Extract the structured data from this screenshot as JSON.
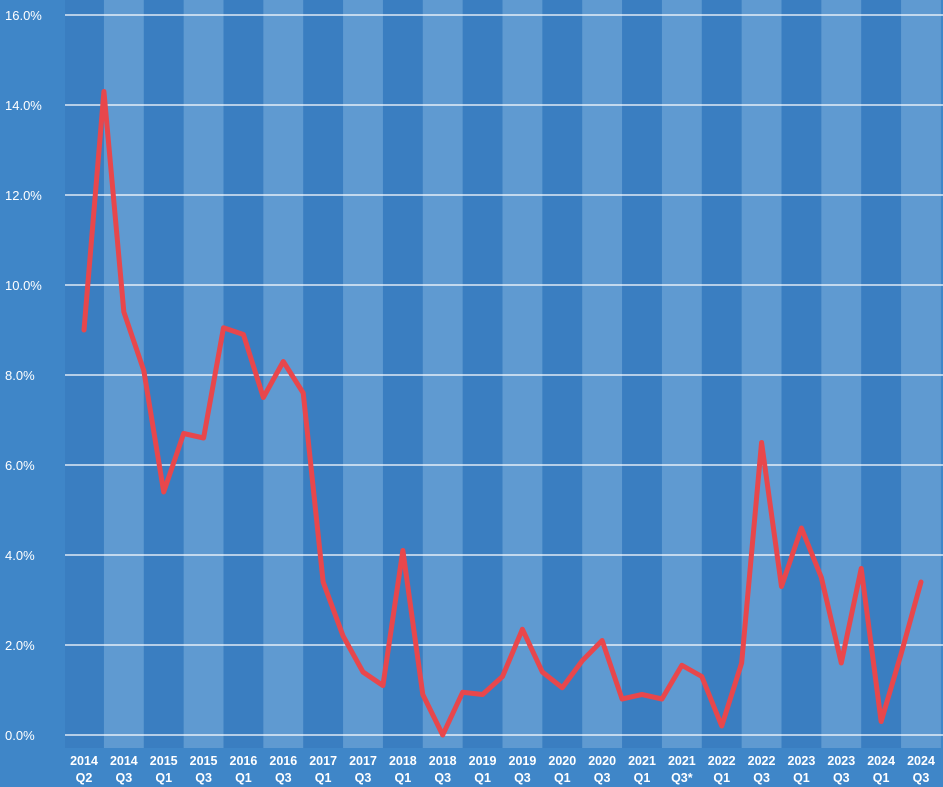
{
  "chart_data": {
    "type": "line",
    "categories": [
      "2014 Q2",
      null,
      "2014 Q3",
      null,
      "2015 Q1",
      null,
      "2015 Q3",
      null,
      "2016 Q1",
      null,
      "2016 Q3",
      null,
      "2017 Q1",
      null,
      "2017 Q3",
      null,
      "2018 Q1",
      null,
      "2018 Q3",
      null,
      "2019 Q1",
      null,
      "2019 Q3",
      null,
      "2020 Q1",
      null,
      "2020 Q3",
      null,
      "2021 Q1",
      null,
      "2021 Q3*",
      null,
      "2022 Q1",
      null,
      "2022 Q3",
      null,
      "2023 Q1",
      null,
      "2023 Q3",
      null,
      "2024 Q1",
      null,
      "2024 Q3"
    ],
    "values": [
      9.0,
      14.3,
      9.4,
      8.1,
      5.4,
      6.7,
      6.6,
      9.05,
      8.9,
      7.5,
      8.3,
      7.6,
      3.4,
      2.2,
      1.4,
      1.1,
      4.1,
      0.9,
      0.0,
      0.95,
      0.9,
      1.3,
      2.35,
      1.4,
      1.05,
      1.65,
      2.1,
      0.8,
      0.9,
      0.8,
      1.55,
      1.3,
      0.2,
      1.6,
      6.5,
      3.3,
      4.6,
      3.5,
      1.6,
      3.7,
      0.3,
      1.8,
      3.4
    ],
    "color": "#e8474c",
    "ylim": [
      0,
      16
    ],
    "yticks": [
      {
        "value": 0,
        "label": "0.0%"
      },
      {
        "value": 2,
        "label": "2.0%"
      },
      {
        "value": 4,
        "label": "4.0%"
      },
      {
        "value": 6,
        "label": "6.0%"
      },
      {
        "value": 8,
        "label": "8.0%"
      },
      {
        "value": 10,
        "label": "10.0%"
      },
      {
        "value": 12,
        "label": "12.0%"
      },
      {
        "value": 14,
        "label": "14.0%"
      },
      {
        "value": 16,
        "label": "16.0%"
      }
    ],
    "grid": true
  }
}
